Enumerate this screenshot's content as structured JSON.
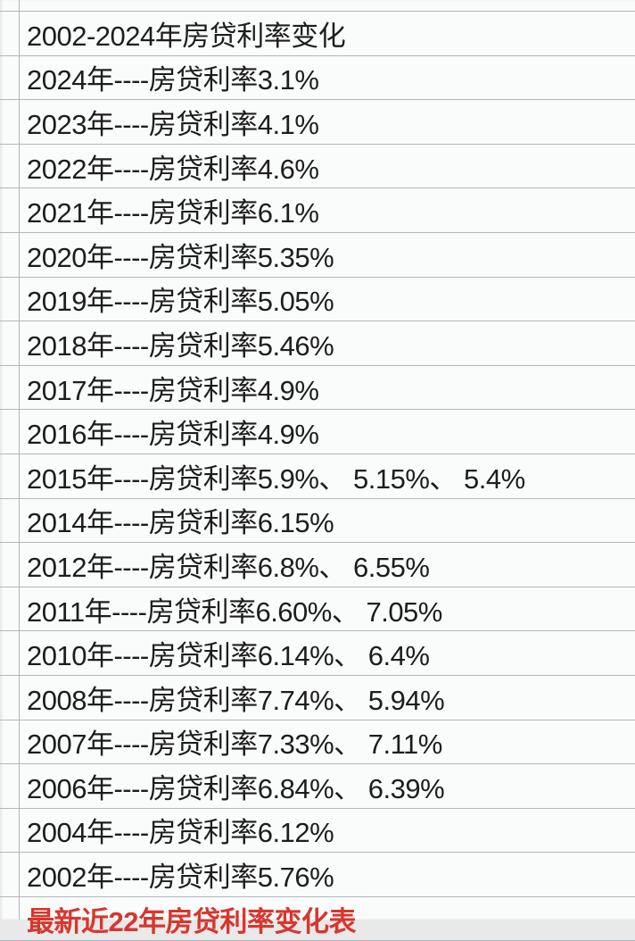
{
  "sheet": {
    "title": "2002-2024年房贷利率变化",
    "rows": [
      "2024年----房贷利率3.1%",
      "2023年----房贷利率4.1%",
      "2022年----房贷利率4.6%",
      "2021年----房贷利率6.1%",
      "2020年----房贷利率5.35%",
      "2019年----房贷利率5.05%",
      "2018年----房贷利率5.46%",
      "2017年----房贷利率4.9%",
      "2016年----房贷利率4.9%",
      "2015年----房贷利率5.9%、 5.15%、 5.4%",
      "2014年----房贷利率6.15%",
      "2012年----房贷利率6.8%、 6.55%",
      "2011年----房贷利率6.60%、 7.05%",
      "2010年----房贷利率6.14%、 6.4%",
      "2008年----房贷利率7.74%、 5.94%",
      "2007年----房贷利率7.33%、 7.11%",
      "2006年----房贷利率6.84%、 6.39%",
      "2004年----房贷利率6.12%",
      "2002年----房贷利率5.76%"
    ],
    "footer": "最新近22年房贷利率变化表",
    "colors": {
      "background": "#fafbfb",
      "gridline": "#b3b7bb",
      "text": "#1d1d1f",
      "accent_red": "#d8362d"
    }
  }
}
